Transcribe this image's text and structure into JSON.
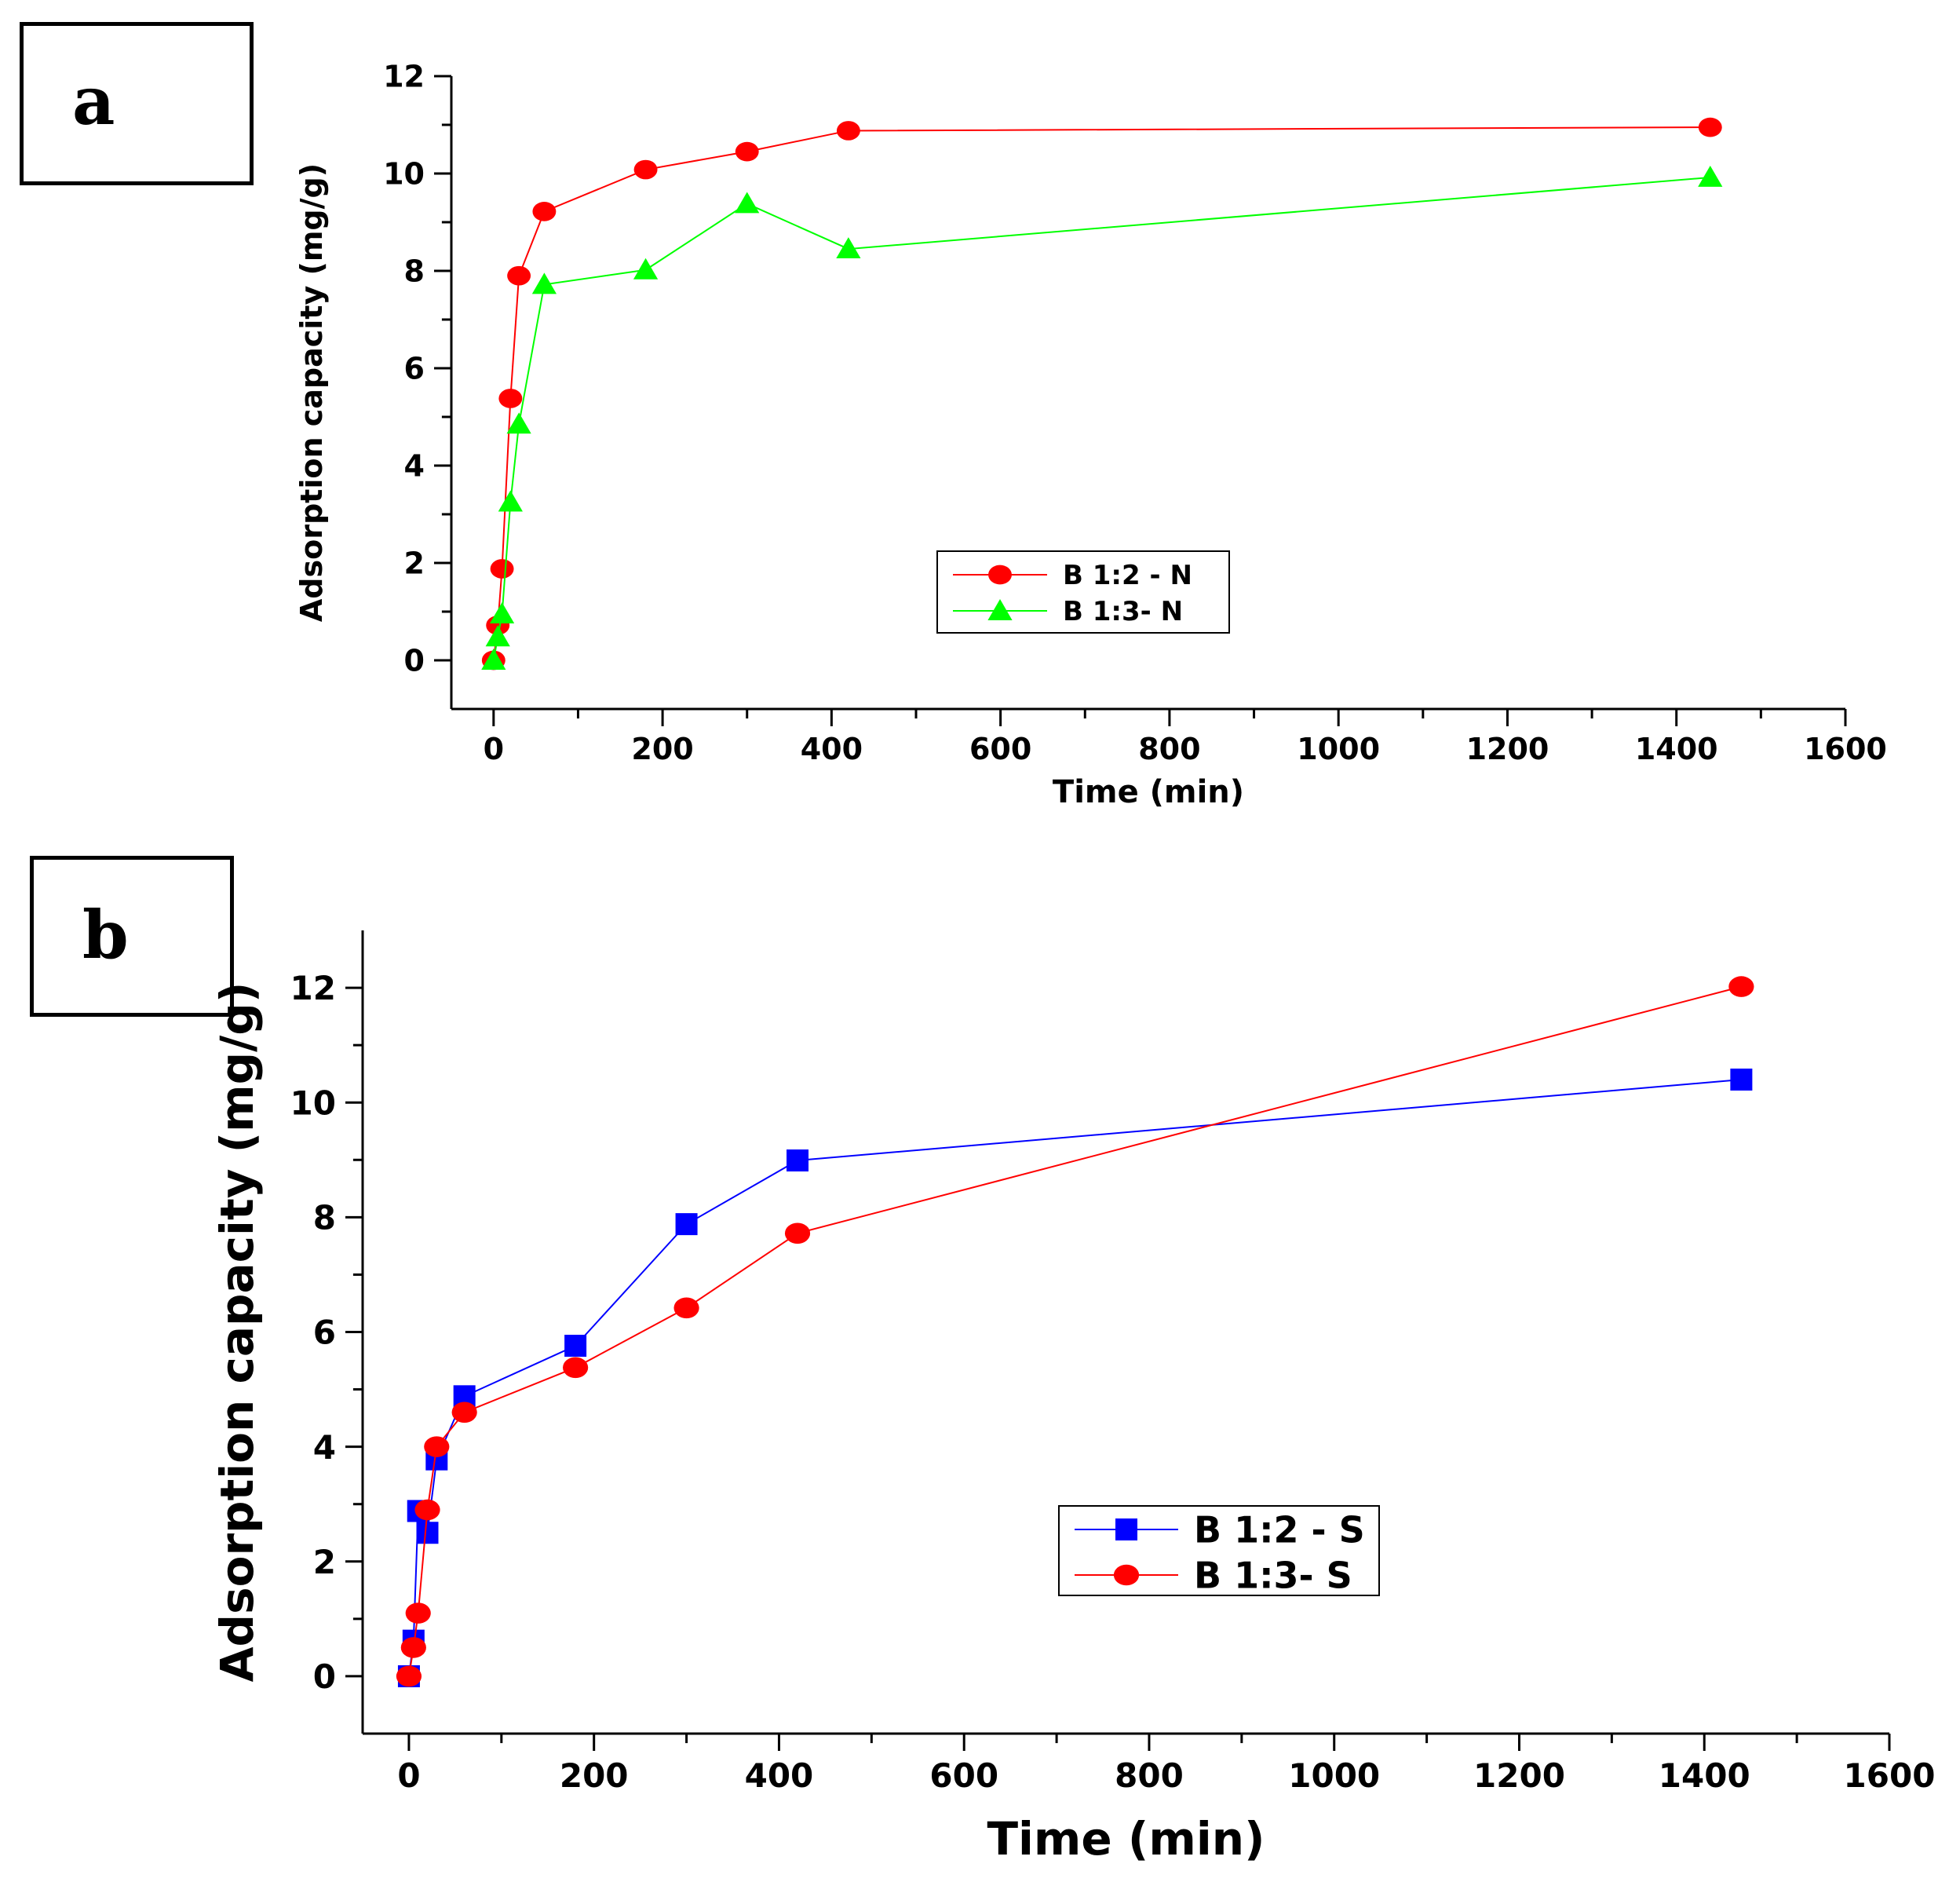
{
  "panels": [
    {
      "label": "a",
      "chart_data": {
        "type": "line",
        "xlabel": "Time (min)",
        "ylabel": "Adsorption capacity (mg/g)",
        "xlim": [
          -50,
          1600
        ],
        "ylim": [
          -1,
          12
        ],
        "x_ticks": [
          0,
          200,
          400,
          600,
          800,
          1000,
          1200,
          1400,
          1600
        ],
        "y_ticks": [
          0,
          2,
          4,
          6,
          8,
          10,
          12
        ],
        "legend_position": "center",
        "series": [
          {
            "name": "B 1:2 - N",
            "color": "#ff0000",
            "marker": "circle",
            "x": [
              0,
              5,
              10,
              20,
              30,
              60,
              180,
              300,
              420,
              1440
            ],
            "y": [
              0,
              0.72,
              1.88,
              5.38,
              7.9,
              9.22,
              10.08,
              10.45,
              10.88,
              10.95
            ]
          },
          {
            "name": "B 1:3- N",
            "color": "#00ff00",
            "marker": "triangle",
            "x": [
              0,
              5,
              10,
              20,
              30,
              60,
              180,
              300,
              420,
              1440
            ],
            "y": [
              0,
              0.48,
              0.95,
              3.25,
              4.85,
              7.72,
              8.02,
              9.38,
              8.45,
              9.92
            ]
          }
        ]
      }
    },
    {
      "label": "b",
      "chart_data": {
        "type": "line",
        "xlabel": "Time (min)",
        "ylabel": "Adsorption capacity (mg/g)",
        "xlim": [
          -50,
          1600
        ],
        "ylim": [
          -1,
          13
        ],
        "x_ticks": [
          0,
          200,
          400,
          600,
          800,
          1000,
          1200,
          1400,
          1600
        ],
        "y_ticks": [
          0,
          2,
          4,
          6,
          8,
          10,
          12
        ],
        "legend_position": "lower-center",
        "series": [
          {
            "name": "B 1:2 - S",
            "color": "#0000ff",
            "marker": "square",
            "x": [
              0,
              5,
              10,
              20,
              30,
              60,
              180,
              300,
              420,
              1440
            ],
            "y": [
              0,
              0.62,
              2.88,
              2.5,
              3.78,
              4.88,
              5.76,
              7.88,
              8.99,
              10.4
            ]
          },
          {
            "name": "B 1:3- S",
            "color": "#ff0000",
            "marker": "circle",
            "x": [
              0,
              5,
              10,
              20,
              30,
              60,
              180,
              300,
              420,
              1440
            ],
            "y": [
              0,
              0.5,
              1.1,
              2.9,
              4.0,
              4.6,
              5.38,
              6.42,
              7.72,
              12.02
            ]
          }
        ]
      }
    }
  ]
}
